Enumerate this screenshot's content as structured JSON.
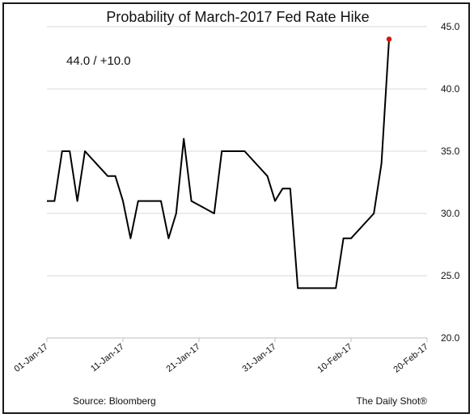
{
  "chart_data": {
    "type": "line",
    "title": "Probability of March-2017 Fed Rate Hike",
    "annotation": "44.0  /  +10.0",
    "source": "Source: Bloomberg",
    "credit": "The Daily Shot®",
    "xlabel": "",
    "ylabel": "",
    "ylim": [
      20,
      45
    ],
    "xlim": [
      "2017-01-01",
      "2017-02-20"
    ],
    "y_ticks": [
      "20.0",
      "25.0",
      "30.0",
      "35.0",
      "40.0",
      "45.0"
    ],
    "x_ticks": [
      "01-Jan-17",
      "11-Jan-17",
      "21-Jan-17",
      "31-Jan-17",
      "10-Feb-17",
      "20-Feb-17"
    ],
    "grid": "horizontal",
    "line_color": "#000000",
    "last_point_color": "#e01010",
    "series": [
      {
        "x": [
          "2017-01-01",
          "2017-01-02",
          "2017-01-03",
          "2017-01-04",
          "2017-01-05",
          "2017-01-06",
          "2017-01-09",
          "2017-01-10",
          "2017-01-11",
          "2017-01-12",
          "2017-01-13",
          "2017-01-16",
          "2017-01-17",
          "2017-01-18",
          "2017-01-19",
          "2017-01-20",
          "2017-01-23",
          "2017-01-24",
          "2017-01-25",
          "2017-01-26",
          "2017-01-27",
          "2017-01-30",
          "2017-01-31",
          "2017-02-01",
          "2017-02-02",
          "2017-02-03",
          "2017-02-06",
          "2017-02-07",
          "2017-02-08",
          "2017-02-09",
          "2017-02-10",
          "2017-02-13",
          "2017-02-14",
          "2017-02-15"
        ],
        "values": [
          31,
          31,
          35,
          35,
          31,
          35,
          33,
          33,
          31,
          28,
          31,
          31,
          28,
          30,
          36,
          31,
          30,
          35,
          35,
          35,
          35,
          33,
          31,
          32,
          32,
          24,
          24,
          24,
          24,
          28,
          28,
          30,
          34,
          44
        ]
      }
    ]
  }
}
